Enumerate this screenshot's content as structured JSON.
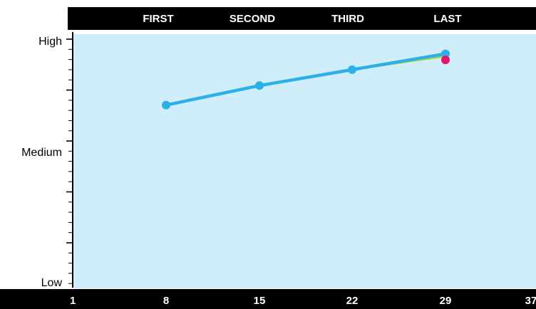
{
  "chart_data": {
    "type": "line",
    "phase_labels": [
      "FIRST",
      "SECOND",
      "THIRD",
      "LAST"
    ],
    "y_tick_labels": [
      "High",
      "Medium",
      "Low"
    ],
    "x_tick_labels": [
      "1",
      "8",
      "15",
      "22",
      "29",
      "37"
    ],
    "xlim": [
      1,
      37
    ],
    "y_range": [
      "Low",
      "High"
    ],
    "grid": false,
    "series": [
      {
        "color": "#2bb0ea",
        "marker": true,
        "points": [
          {
            "x": 8,
            "y": 0.73
          },
          {
            "x": 15,
            "y": 0.81
          },
          {
            "x": 22,
            "y": 0.875
          },
          {
            "x": 29,
            "y": 0.94
          }
        ]
      },
      {
        "color": "#a8d63a",
        "marker": false,
        "points": [
          {
            "x": 22,
            "y": 0.875
          },
          {
            "x": 29,
            "y": 0.93
          }
        ]
      },
      {
        "color": "#e0176b",
        "marker": true,
        "points": [
          {
            "x": 29,
            "y": 0.915
          }
        ]
      }
    ]
  },
  "colors": {
    "plot_background": "#cfeefa",
    "band": "#000000",
    "band_text": "#ffffff"
  }
}
